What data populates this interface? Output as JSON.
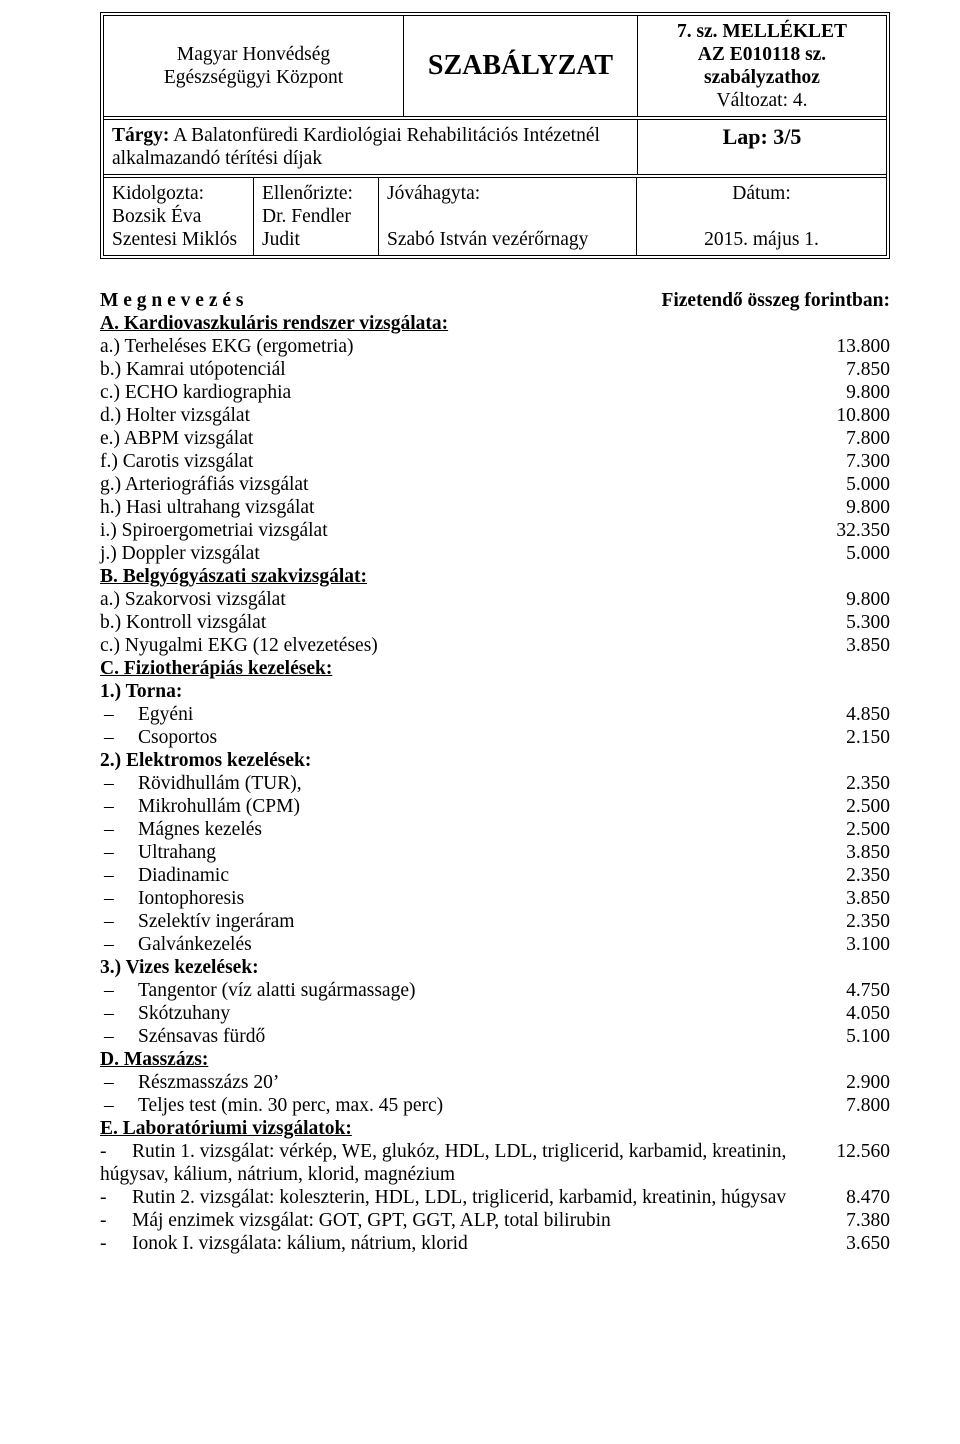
{
  "header": {
    "org_line1": "Magyar Honvédség",
    "org_line2": "Egészségügyi Központ",
    "title": "SZABÁLYZAT",
    "attach_line1": "7. sz. MELLÉKLET",
    "attach_line2": "AZ E010118 sz.",
    "attach_line3": "szabályzathoz",
    "version": "Változat: 4.",
    "subject_label": "Tárgy:",
    "subject_text_1": " A Balatonfüredi Kardiológiai Rehabilitációs Intézetnél",
    "subject_text_2": "alkalmazandó térítési díjak",
    "page": "Lap: 3/5",
    "col1_label": "Kidolgozta:",
    "col1_val1": "Bozsik Éva",
    "col1_val2": "Szentesi Miklós",
    "col2_label": "Ellenőrizte:",
    "col2_val1": "Dr. Fendler",
    "col2_val2": "Judit",
    "col3_label": "Jóváhagyta:",
    "col3_val": "Szabó István vezérőrnagy",
    "col4_label": "Dátum:",
    "col4_val": "2015. május 1."
  },
  "body": {
    "heading_name": "M e g n e v e z é s",
    "heading_amount": "Fizetendő összeg forintban:",
    "secA": "A. Kardiovaszkuláris rendszer vizsgálata:",
    "itemsA": [
      {
        "label": "a.) Terheléses EKG (ergometria)",
        "amount": "13.800"
      },
      {
        "label": "b.) Kamrai utópotenciál",
        "amount": "7.850"
      },
      {
        "label": "c.) ECHO kardiographia",
        "amount": "9.800"
      },
      {
        "label": "d.) Holter vizsgálat",
        "amount": "10.800"
      },
      {
        "label": "e.) ABPM vizsgálat",
        "amount": "7.800"
      },
      {
        "label": "f.) Carotis vizsgálat",
        "amount": "7.300"
      },
      {
        "label": "g.) Arteriográfiás vizsgálat",
        "amount": "5.000"
      },
      {
        "label": "h.) Hasi ultrahang vizsgálat",
        "amount": "9.800"
      },
      {
        "label": "i.) Spiroergometriai vizsgálat",
        "amount": "32.350"
      },
      {
        "label": "j.) Doppler vizsgálat",
        "amount": "5.000"
      }
    ],
    "secB": "B. Belgyógyászati szakvizsgálat:",
    "itemsB": [
      {
        "label": "a.) Szakorvosi vizsgálat",
        "amount": "9.800"
      },
      {
        "label": "b.) Kontroll vizsgálat",
        "amount": "5.300"
      },
      {
        "label": "c.) Nyugalmi EKG (12 elvezetéses)",
        "amount": "3.850"
      }
    ],
    "secC": "C. Fiziotherápiás kezelések:",
    "c1": "1.) Torna:",
    "itemsC1": [
      {
        "label": "Egyéni",
        "amount": "4.850"
      },
      {
        "label": "Csoportos",
        "amount": "2.150"
      }
    ],
    "c2": "2.) Elektromos kezelések:",
    "itemsC2": [
      {
        "label": "Rövidhullám (TUR),",
        "amount": "2.350"
      },
      {
        "label": "Mikrohullám (CPM)",
        "amount": "2.500"
      },
      {
        "label": "Mágnes kezelés",
        "amount": "2.500"
      },
      {
        "label": "Ultrahang",
        "amount": "3.850"
      },
      {
        "label": "Diadinamic",
        "amount": "2.350"
      },
      {
        "label": "Iontophoresis",
        "amount": "3.850"
      },
      {
        "label": "Szelektív ingeráram",
        "amount": "2.350"
      },
      {
        "label": "Galvánkezelés",
        "amount": "3.100"
      }
    ],
    "c3": "3.) Vizes kezelések:",
    "itemsC3": [
      {
        "label": "Tangentor (víz alatti sugármassage)",
        "amount": "4.750"
      },
      {
        "label": "Skótzuhany",
        "amount": "4.050"
      },
      {
        "label": "Szénsavas fürdő",
        "amount": "5.100"
      }
    ],
    "secD": "D. Masszázs:",
    "itemsD": [
      {
        "label": "Részmasszázs 20’",
        "amount": "2.900"
      },
      {
        "label": "Teljes test (min. 30 perc, max. 45 perc)",
        "amount": "7.800"
      }
    ],
    "secE": "E. Laboratóriumi vizsgálatok:",
    "itemsE": [
      {
        "label": "Rutin 1. vizsgálat: vérkép, WE, glukóz, HDL, LDL, triglicerid, karbamid, kreatinin,",
        "amount": "12.560",
        "cont": "húgysav, kálium, nátrium, klorid, magnézium"
      },
      {
        "label": "Rutin 2. vizsgálat: koleszterin, HDL, LDL, triglicerid, karbamid, kreatinin, húgysav",
        "amount": "8.470"
      },
      {
        "label": "Máj enzimek vizsgálat: GOT, GPT, GGT, ALP, total bilirubin",
        "amount": "7.380"
      },
      {
        "label": "Ionok I. vizsgálata: kálium, nátrium, klorid",
        "amount": "3.650"
      }
    ]
  }
}
